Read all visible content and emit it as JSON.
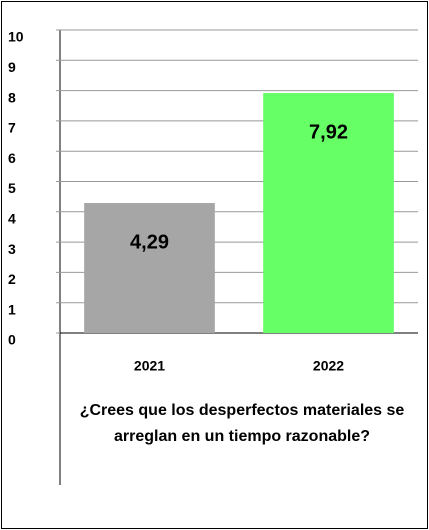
{
  "chart_data": {
    "type": "bar",
    "categories": [
      "2021",
      "2022"
    ],
    "values": [
      4.29,
      7.92
    ],
    "value_labels": [
      "4,29",
      "7,92"
    ],
    "colors": [
      "#a6a6a6",
      "#66ff66"
    ],
    "ylim": [
      0,
      10
    ],
    "yticks": [
      0,
      1,
      2,
      3,
      4,
      5,
      6,
      7,
      8,
      9,
      10
    ],
    "grid": true,
    "x_label": "¿Crees que los desperfectos materiales se arreglan en un tiempo razonable?"
  }
}
